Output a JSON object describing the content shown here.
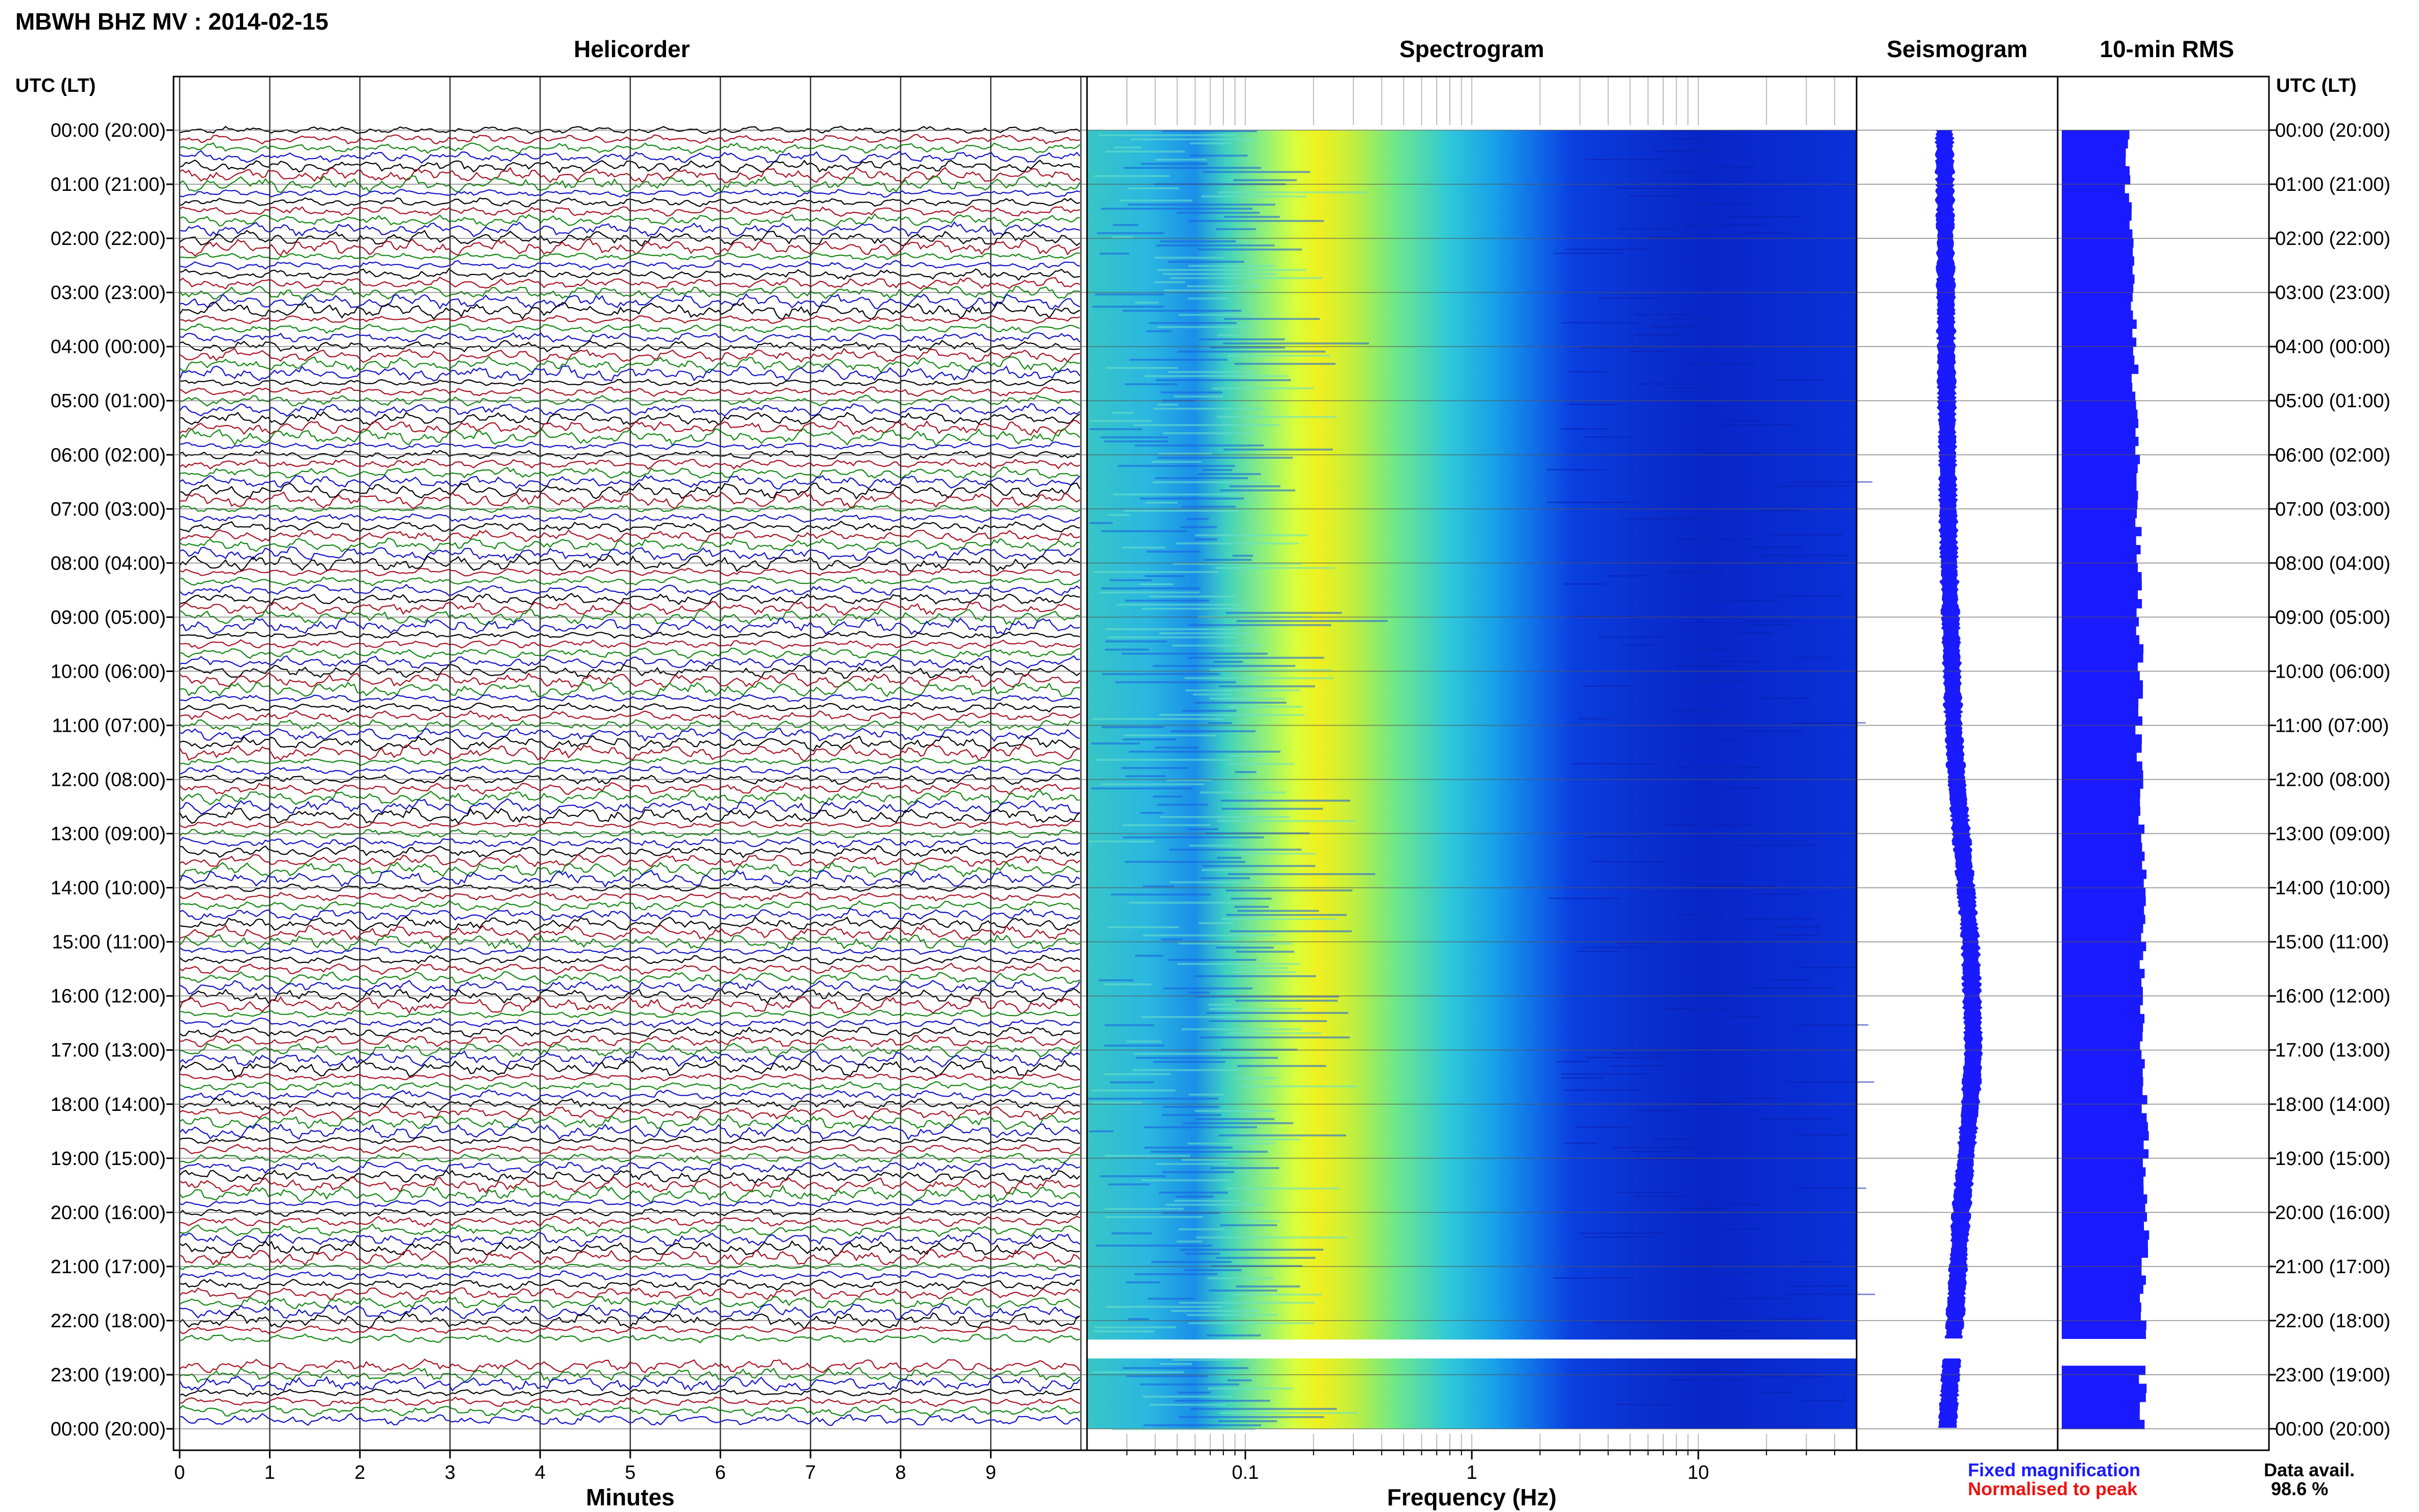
{
  "title": "MBWH BHZ MV : 2014-02-15",
  "panels": {
    "helicorder": "Helicorder",
    "spectrogram": "Spectrogram",
    "seismogram": "Seismogram",
    "rms": "10-min RMS"
  },
  "axis": {
    "time_label_left": "UTC (LT)",
    "time_label_right": "UTC (LT)",
    "minutes_label": "Minutes",
    "frequency_label": "Frequency (Hz)"
  },
  "legend": {
    "fixed": "Fixed magnification",
    "normalised": "Normalised to peak",
    "data_avail_label": "Data avail.",
    "data_avail_value": "98.6 %"
  },
  "colors": {
    "fixed": "#1a1aff",
    "normalised": "#ee1111",
    "trace_cycle": [
      "#000000",
      "#aa1122",
      "#118811",
      "#1111cc"
    ],
    "rms_bar": "#1a1aff",
    "seismo": "#1a1aff"
  },
  "chart_data": {
    "type": "helicorder-spectrogram",
    "hour_labels": [
      "00:00 (20:00)",
      "01:00 (21:00)",
      "02:00 (22:00)",
      "03:00 (23:00)",
      "04:00 (00:00)",
      "05:00 (01:00)",
      "06:00 (02:00)",
      "07:00 (03:00)",
      "08:00 (04:00)",
      "09:00 (05:00)",
      "10:00 (06:00)",
      "11:00 (07:00)",
      "12:00 (08:00)",
      "13:00 (09:00)",
      "14:00 (10:00)",
      "15:00 (11:00)",
      "16:00 (12:00)",
      "17:00 (13:00)",
      "18:00 (14:00)",
      "19:00 (15:00)",
      "20:00 (16:00)",
      "21:00 (17:00)",
      "22:00 (18:00)",
      "23:00 (19:00)",
      "00:00 (20:00)"
    ],
    "minutes_ticks": [
      "0",
      "1",
      "2",
      "3",
      "4",
      "5",
      "6",
      "7",
      "8",
      "9"
    ],
    "minutes_range": [
      0,
      10
    ],
    "frequency_ticks": [
      {
        "value": 0.1,
        "label": "0.1"
      },
      {
        "value": 1,
        "label": "1"
      },
      {
        "value": 10,
        "label": "10"
      }
    ],
    "frequency_range": [
      0.02,
      50
    ],
    "frequency_scale": "log",
    "hours_range": [
      0,
      24
    ],
    "data_gap_hours": [
      22.35,
      22.7
    ],
    "spectrogram_peak_hz": 0.25,
    "seismogram_offsets": [
      0,
      0.02,
      0.03,
      0.05,
      0.06,
      0.08,
      0.1,
      0.12,
      0.15,
      0.2,
      0.25,
      0.3,
      0.4,
      0.55,
      0.7,
      0.85,
      0.9,
      0.95,
      0.85,
      0.7,
      0.55,
      0.45,
      0.35,
      0.2,
      0.1
    ],
    "rms_relative_by_hour": [
      0.75,
      0.76,
      0.8,
      0.82,
      0.84,
      0.84,
      0.86,
      0.87,
      0.88,
      0.9,
      0.9,
      0.88,
      0.92,
      0.92,
      0.94,
      0.93,
      0.95,
      0.94,
      0.96,
      0.97,
      0.96,
      0.95,
      0.94,
      0.93,
      0.95
    ]
  }
}
